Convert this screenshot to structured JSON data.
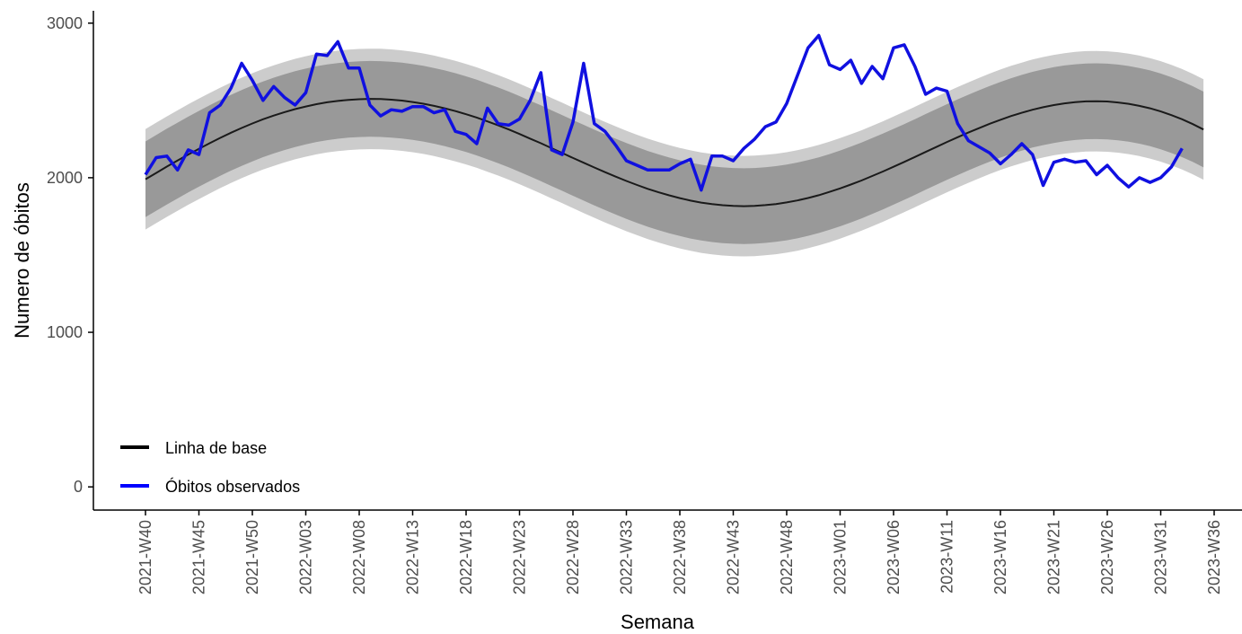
{
  "chart_data": {
    "type": "line",
    "title": "",
    "xlabel": "Semana",
    "ylabel": "Numero de óbitos",
    "ylim": [
      -150,
      3080
    ],
    "y_ticks": [
      0,
      1000,
      2000,
      3000
    ],
    "x_tick_labels": [
      "2021-W40",
      "2021-W45",
      "2021-W50",
      "2022-W03",
      "2022-W08",
      "2022-W13",
      "2022-W18",
      "2022-W23",
      "2022-W28",
      "2022-W33",
      "2022-W38",
      "2022-W43",
      "2022-W48",
      "2023-W01",
      "2023-W06",
      "2023-W11",
      "2023-W16",
      "2023-W21",
      "2023-W26",
      "2023-W31",
      "2023-W36"
    ],
    "n_weeks": 100,
    "grid": false,
    "legend_position": "bottom-left",
    "legend": [
      {
        "label": "Linha de base",
        "color": "#1a1a1a"
      },
      {
        "label": "Óbitos observados",
        "color": "#0000ff"
      }
    ],
    "colors": {
      "observed": "#1010e0",
      "baseline": "#1a1a1a",
      "band_inner": "#999999",
      "band_outer": "#cccccc"
    },
    "series": [
      {
        "name": "Linha de base",
        "values": [
          1990,
          2031,
          2072,
          2111,
          2150,
          2187,
          2223,
          2258,
          2291,
          2322,
          2351,
          2378,
          2402,
          2424,
          2444,
          2461,
          2476,
          2488,
          2497,
          2504,
          2508,
          2510,
          2509,
          2505,
          2499,
          2490,
          2479,
          2465,
          2449,
          2431,
          2411,
          2389,
          2364,
          2339,
          2312,
          2283,
          2253,
          2223,
          2191,
          2160,
          2128,
          2097,
          2066,
          2036,
          2007,
          1979,
          1953,
          1928,
          1906,
          1886,
          1868,
          1852,
          1839,
          1829,
          1822,
          1818,
          1816,
          1818,
          1823,
          1830,
          1840,
          1853,
          1869,
          1887,
          1908,
          1931,
          1956,
          1982,
          2011,
          2040,
          2071,
          2102,
          2134,
          2167,
          2199,
          2231,
          2262,
          2292,
          2321,
          2349,
          2375,
          2399,
          2420,
          2440,
          2456,
          2470,
          2481,
          2489,
          2494,
          2495,
          2493,
          2487,
          2478,
          2465,
          2449,
          2429,
          2405,
          2378,
          2347,
          2312
        ]
      },
      {
        "name": "Óbitos observados",
        "values": [
          2020,
          2130,
          2140,
          2050,
          2180,
          2150,
          2420,
          2470,
          2580,
          2740,
          2630,
          2500,
          2590,
          2520,
          2470,
          2550,
          2800,
          2790,
          2880,
          2710,
          2710,
          2470,
          2400,
          2440,
          2430,
          2460,
          2460,
          2420,
          2440,
          2300,
          2280,
          2220,
          2450,
          2350,
          2340,
          2380,
          2500,
          2680,
          2180,
          2150,
          2360,
          2740,
          2350,
          2300,
          2210,
          2110,
          2080,
          2050,
          2050,
          2050,
          2090,
          2120,
          1920,
          2140,
          2140,
          2110,
          2190,
          2250,
          2330,
          2360,
          2480,
          2660,
          2840,
          2920,
          2730,
          2700,
          2760,
          2610,
          2720,
          2640,
          2840,
          2860,
          2720,
          2540,
          2580,
          2560,
          2350,
          2240,
          2200,
          2160,
          2090,
          2150,
          2220,
          2150,
          1950,
          2100,
          2120,
          2100,
          2110,
          2020,
          2080,
          2000,
          1940,
          2000,
          1970,
          2000,
          2070,
          2190,
          null,
          null
        ]
      }
    ],
    "bands": {
      "inner_offset": 245,
      "outer_offset": 325
    }
  }
}
